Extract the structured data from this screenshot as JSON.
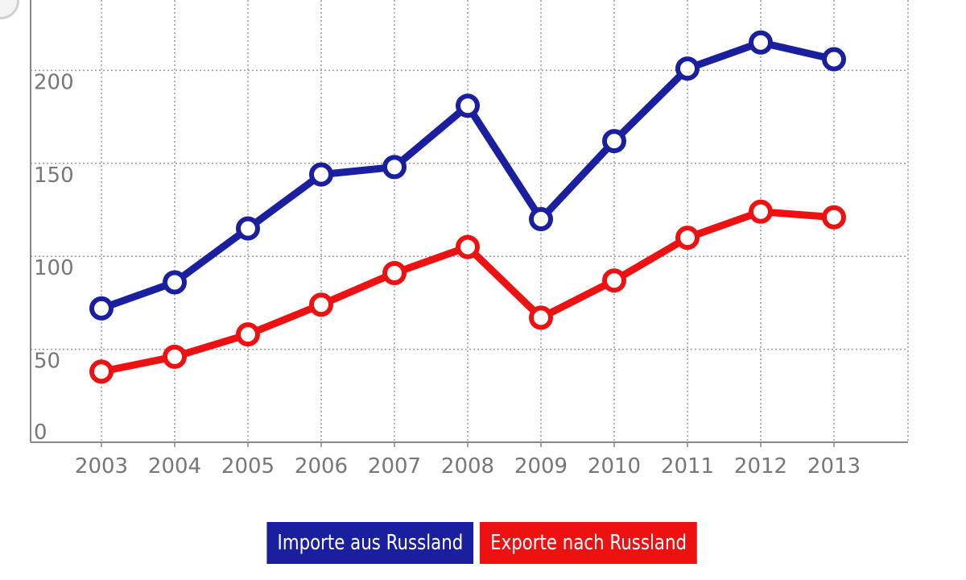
{
  "chart_data": {
    "type": "line",
    "categories": [
      "2003",
      "2004",
      "2005",
      "2006",
      "2007",
      "2008",
      "2009",
      "2010",
      "2011",
      "2012",
      "2013"
    ],
    "series": [
      {
        "name": "Importe aus Russland",
        "color": "#1a1fa0",
        "values": [
          72,
          86,
          115,
          144,
          148,
          181,
          120,
          162,
          201,
          215,
          206
        ]
      },
      {
        "name": "Exporte nach Russland",
        "color": "#ee1111",
        "values": [
          38,
          46,
          58,
          74,
          91,
          105,
          67,
          87,
          110,
          124,
          121
        ]
      }
    ],
    "yticks": [
      0,
      50,
      100,
      150,
      200,
      250
    ],
    "ylim": [
      0,
      250
    ],
    "grid": true,
    "legend_position": "bottom",
    "title": "",
    "xlabel": "",
    "ylabel": ""
  }
}
